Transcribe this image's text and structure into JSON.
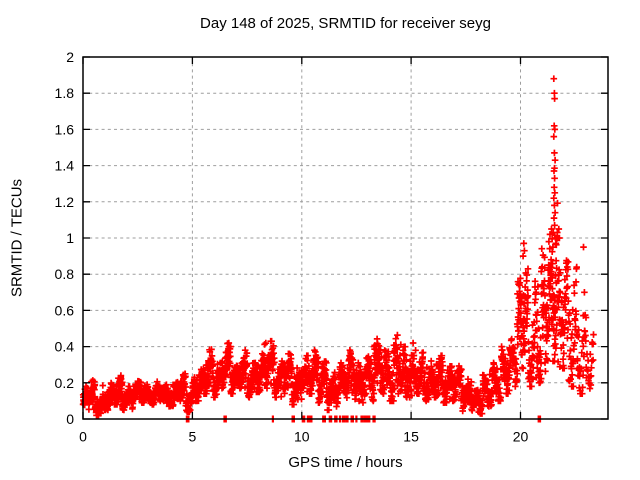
{
  "chart_data": {
    "type": "scatter",
    "title": "Day 148 of 2025, SRMTID for receiver seyg",
    "xlabel": "GPS time / hours",
    "ylabel": "SRMTID / TECUs",
    "xlim": [
      0,
      24
    ],
    "ylim": [
      0,
      2
    ],
    "xticks": [
      0,
      5,
      10,
      15,
      20
    ],
    "yticks": [
      0,
      0.2,
      0.4,
      0.6,
      0.8,
      1,
      1.2,
      1.4,
      1.6,
      1.8,
      2
    ],
    "grid": true,
    "legend": "none",
    "marker": "plus",
    "marker_color": "#ff0000",
    "grid_color": "#9e9e9e",
    "axis_color": "#000000",
    "series_name": "SRMTID",
    "envelope_bins": [
      [
        0.0,
        0.3,
        0.04,
        0.18,
        40
      ],
      [
        0.3,
        0.55,
        0.07,
        0.22,
        34
      ],
      [
        0.55,
        0.9,
        0.02,
        0.13,
        46
      ],
      [
        0.9,
        1.4,
        0.05,
        0.2,
        64
      ],
      [
        1.4,
        1.8,
        0.08,
        0.24,
        52
      ],
      [
        1.8,
        2.3,
        0.05,
        0.18,
        64
      ],
      [
        2.3,
        2.8,
        0.09,
        0.21,
        64
      ],
      [
        2.8,
        3.3,
        0.08,
        0.19,
        64
      ],
      [
        3.3,
        3.8,
        0.1,
        0.22,
        64
      ],
      [
        3.8,
        4.3,
        0.07,
        0.2,
        64
      ],
      [
        4.3,
        4.7,
        0.1,
        0.25,
        52
      ],
      [
        4.7,
        5.1,
        0.04,
        0.23,
        52
      ],
      [
        5.1,
        5.5,
        0.1,
        0.3,
        52
      ],
      [
        5.5,
        5.95,
        0.14,
        0.4,
        58
      ],
      [
        5.95,
        6.35,
        0.12,
        0.31,
        52
      ],
      [
        6.35,
        6.75,
        0.17,
        0.42,
        52
      ],
      [
        6.75,
        7.1,
        0.14,
        0.33,
        46
      ],
      [
        7.1,
        7.5,
        0.17,
        0.38,
        52
      ],
      [
        7.5,
        7.9,
        0.12,
        0.31,
        52
      ],
      [
        7.9,
        8.3,
        0.15,
        0.36,
        52
      ],
      [
        8.3,
        8.75,
        0.17,
        0.43,
        58
      ],
      [
        8.75,
        9.15,
        0.12,
        0.32,
        52
      ],
      [
        9.15,
        9.55,
        0.14,
        0.36,
        52
      ],
      [
        9.55,
        9.95,
        0.08,
        0.29,
        52
      ],
      [
        9.95,
        10.35,
        0.11,
        0.35,
        52
      ],
      [
        10.35,
        10.75,
        0.14,
        0.38,
        52
      ],
      [
        10.75,
        11.15,
        0.09,
        0.32,
        52
      ],
      [
        11.15,
        11.6,
        0.05,
        0.26,
        56
      ],
      [
        11.6,
        12.0,
        0.08,
        0.31,
        52
      ],
      [
        12.0,
        12.45,
        0.11,
        0.38,
        56
      ],
      [
        12.45,
        12.85,
        0.08,
        0.31,
        52
      ],
      [
        12.85,
        13.3,
        0.1,
        0.36,
        56
      ],
      [
        13.3,
        13.75,
        0.14,
        0.45,
        58
      ],
      [
        13.75,
        14.2,
        0.1,
        0.39,
        58
      ],
      [
        14.2,
        14.65,
        0.14,
        0.48,
        58
      ],
      [
        14.65,
        15.1,
        0.12,
        0.43,
        58
      ],
      [
        15.1,
        15.55,
        0.14,
        0.38,
        58
      ],
      [
        15.55,
        16.0,
        0.1,
        0.33,
        56
      ],
      [
        16.0,
        16.45,
        0.12,
        0.35,
        56
      ],
      [
        16.45,
        16.9,
        0.09,
        0.3,
        56
      ],
      [
        16.9,
        17.35,
        0.1,
        0.3,
        56
      ],
      [
        17.35,
        17.8,
        0.04,
        0.22,
        56
      ],
      [
        17.8,
        18.25,
        0.03,
        0.16,
        56
      ],
      [
        18.25,
        18.7,
        0.06,
        0.26,
        50
      ],
      [
        18.7,
        19.1,
        0.1,
        0.31,
        48
      ],
      [
        19.1,
        19.5,
        0.14,
        0.4,
        48
      ],
      [
        19.5,
        19.85,
        0.18,
        0.46,
        42
      ],
      [
        19.85,
        20.05,
        0.25,
        0.8,
        30
      ],
      [
        20.05,
        20.35,
        0.28,
        0.97,
        44
      ],
      [
        20.35,
        20.65,
        0.18,
        0.62,
        36
      ],
      [
        20.65,
        20.95,
        0.2,
        0.8,
        36
      ],
      [
        20.95,
        21.2,
        0.25,
        0.95,
        34
      ],
      [
        21.2,
        21.45,
        0.28,
        1.05,
        40
      ],
      [
        21.45,
        21.7,
        0.32,
        1.45,
        46
      ],
      [
        21.7,
        22.2,
        0.28,
        1.0,
        60
      ],
      [
        22.2,
        22.6,
        0.18,
        0.85,
        40
      ],
      [
        22.6,
        23.0,
        0.14,
        0.7,
        32
      ],
      [
        23.0,
        23.35,
        0.12,
        0.55,
        22
      ]
    ],
    "spike_points": [
      [
        21.52,
        1.88
      ],
      [
        21.55,
        1.8
      ],
      [
        21.56,
        1.77
      ],
      [
        21.54,
        1.62
      ],
      [
        21.57,
        1.6
      ],
      [
        21.52,
        1.56
      ],
      [
        21.55,
        1.47
      ],
      [
        21.58,
        1.43
      ],
      [
        21.53,
        1.37
      ],
      [
        21.56,
        1.33
      ],
      [
        21.54,
        1.28
      ],
      [
        21.57,
        1.25
      ],
      [
        21.52,
        1.22
      ],
      [
        21.55,
        1.18
      ],
      [
        21.58,
        1.14
      ],
      [
        21.53,
        1.11
      ],
      [
        21.56,
        1.07
      ],
      [
        21.5,
        1.03
      ],
      [
        21.6,
        1.0
      ],
      [
        21.62,
        0.97
      ],
      [
        21.48,
        0.95
      ],
      [
        21.35,
        1.02
      ],
      [
        21.3,
        0.98
      ],
      [
        20.15,
        0.97
      ],
      [
        20.18,
        0.93
      ],
      [
        20.12,
        0.9
      ],
      [
        22.88,
        0.95
      ],
      [
        21.75,
        1.05
      ],
      [
        21.78,
        1.0
      ]
    ],
    "zero_marker_times": [
      4.75,
      4.82,
      6.47,
      6.5,
      6.53,
      8.68,
      9.58,
      9.61,
      9.64,
      10.05,
      10.08,
      10.11,
      10.28,
      10.36,
      10.44,
      10.98,
      11.02,
      11.06,
      11.28,
      11.31,
      11.34,
      11.53,
      11.56,
      11.59,
      11.75,
      11.88,
      11.91,
      11.94,
      12.03,
      12.06,
      12.09,
      12.28,
      12.31,
      12.34,
      12.5,
      12.73,
      12.76,
      12.79,
      12.88,
      12.91,
      12.94,
      13.03,
      13.06,
      13.09,
      13.28,
      13.33,
      20.83,
      20.86,
      20.89
    ]
  }
}
